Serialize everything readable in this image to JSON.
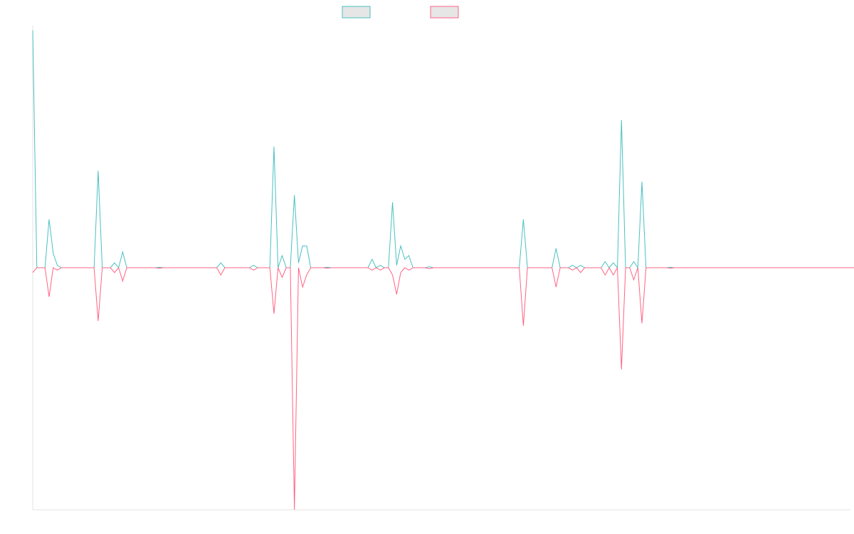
{
  "chart_data": {
    "type": "line",
    "title": "",
    "xlabel": "",
    "ylabel": "",
    "grid": false,
    "legend_position": "top-center",
    "x_count": 201,
    "ylim": [
      -1.0,
      1.0
    ],
    "series": [
      {
        "color": "#4bc0c0",
        "fill": "#e6e6e6",
        "values": [
          0.98,
          0,
          0,
          0,
          0.2,
          0.06,
          0.01,
          0,
          0,
          0,
          0,
          0,
          0,
          0,
          0,
          0,
          0.4,
          0,
          0,
          0,
          0.02,
          0,
          0.065,
          0,
          0,
          0,
          0,
          0,
          0,
          0,
          0,
          0.002,
          0,
          0,
          0,
          0,
          0,
          0,
          0,
          0,
          0,
          0,
          0,
          0,
          0,
          0,
          0.02,
          0,
          0,
          0,
          0,
          0,
          0,
          0,
          0.01,
          0,
          0,
          0,
          0,
          0.5,
          0,
          0.05,
          0,
          0,
          0.3,
          0.02,
          0.09,
          0.09,
          0,
          0,
          0,
          0,
          0.002,
          0,
          0,
          0,
          0,
          0,
          0,
          0,
          0,
          0,
          0,
          0.035,
          0,
          0.01,
          0,
          0,
          0.27,
          0.01,
          0.09,
          0.035,
          0.05,
          0,
          0,
          0,
          0,
          0.004,
          0,
          0,
          0,
          0,
          0,
          0,
          0,
          0,
          0,
          0,
          0,
          0,
          0,
          0,
          0,
          0,
          0,
          0,
          0,
          0,
          0,
          0,
          0.2,
          0,
          0,
          0,
          0,
          0,
          0,
          0,
          0.08,
          0,
          0,
          0,
          0.01,
          0,
          0.01,
          0,
          0,
          0,
          0,
          0,
          0.025,
          0,
          0.02,
          0,
          0.61,
          0,
          0,
          0.025,
          0,
          0.355,
          0,
          0,
          0,
          0,
          0,
          0,
          0.002,
          0,
          0,
          0,
          0,
          0,
          0,
          0,
          0,
          0,
          0,
          0,
          0,
          0,
          0,
          0,
          0,
          0,
          0,
          0,
          0,
          0,
          0,
          0,
          0,
          0,
          0,
          0,
          0,
          0,
          0,
          0,
          0,
          0,
          0,
          0,
          0,
          0,
          0,
          0,
          0,
          0,
          0,
          0,
          0,
          0,
          0,
          0,
          0,
          0,
          0,
          0,
          0,
          0,
          0,
          0,
          0,
          0,
          0,
          0
        ]
      },
      {
        "color": "#ff6384",
        "fill": "#e6e6e6",
        "values": [
          -0.02,
          0,
          0,
          0,
          -0.12,
          0,
          -0.01,
          0,
          0,
          0,
          0,
          0,
          0,
          0,
          0,
          0,
          -0.22,
          0,
          0,
          0,
          -0.02,
          0,
          -0.055,
          0,
          0,
          0,
          0,
          0,
          0,
          0,
          0,
          -0.002,
          0,
          0,
          0,
          0,
          0,
          0,
          0,
          0,
          0,
          0,
          0,
          0,
          0,
          0,
          -0.03,
          0,
          0,
          0,
          0,
          0,
          0,
          0,
          -0.01,
          0,
          0,
          0,
          0,
          -0.19,
          0,
          -0.04,
          0,
          0,
          -1.0,
          0,
          -0.08,
          -0.03,
          0,
          0,
          0,
          0,
          -0.002,
          0,
          0,
          0,
          0,
          0,
          0,
          0,
          0,
          0,
          0,
          -0.01,
          0,
          -0.01,
          0,
          0,
          -0.03,
          -0.11,
          -0.02,
          0,
          -0.01,
          0,
          0,
          0,
          0,
          -0.004,
          0,
          0,
          0,
          0,
          0,
          0,
          0,
          0,
          0,
          0,
          0,
          0,
          0,
          0,
          0,
          0,
          0,
          0,
          0,
          0,
          0,
          0,
          -0.24,
          0,
          0,
          0,
          0,
          0,
          0,
          0,
          -0.08,
          0,
          0,
          0,
          -0.01,
          0,
          -0.02,
          0,
          0,
          0,
          0,
          0,
          -0.03,
          0,
          -0.03,
          0,
          -0.42,
          0,
          0,
          -0.05,
          0,
          -0.23,
          0,
          0,
          0,
          0,
          0,
          0,
          -0.002,
          0,
          0,
          0,
          0,
          0,
          0,
          0,
          0,
          0,
          0,
          0,
          0,
          0,
          0,
          0,
          0,
          0,
          0,
          0,
          0,
          0,
          0,
          0,
          0,
          0,
          0,
          0,
          0,
          0,
          0,
          0,
          0,
          0,
          0,
          0,
          0,
          0,
          0,
          0,
          0,
          0,
          0,
          0,
          0,
          0,
          0,
          0,
          0,
          0,
          0,
          0,
          0,
          0,
          0,
          0,
          0,
          0,
          0,
          0,
          0
        ]
      }
    ]
  }
}
